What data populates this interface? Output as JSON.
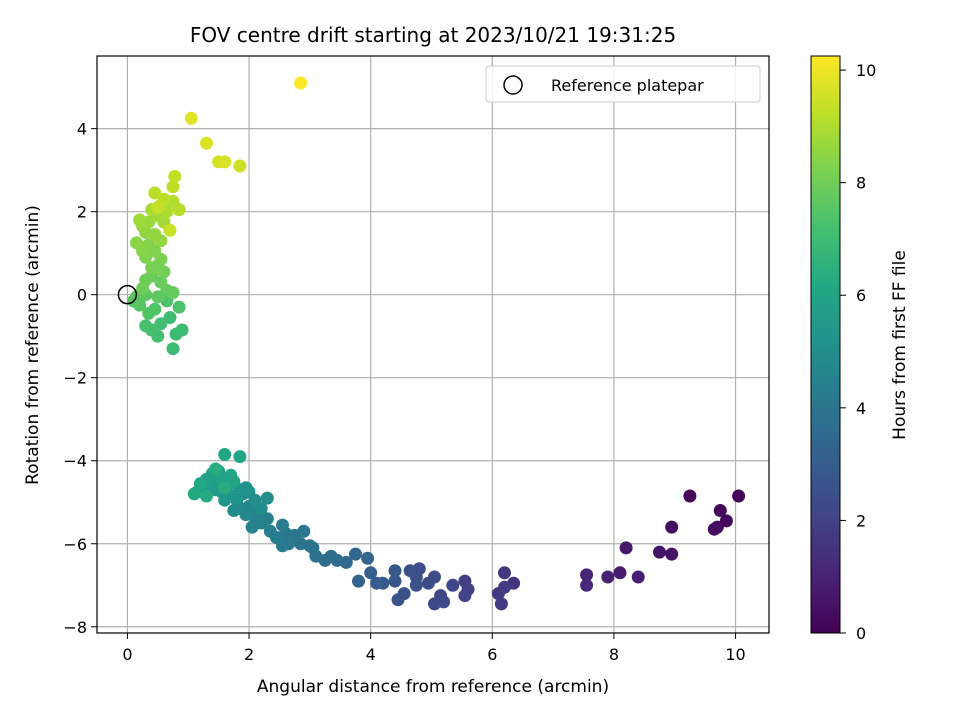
{
  "chart_data": {
    "type": "scatter",
    "title": "FOV centre drift starting at 2023/10/21 19:31:25",
    "xlabel": "Angular distance from reference (arcmin)",
    "ylabel": "Rotation from reference (arcmin)",
    "xlim": [
      -0.5,
      10.55
    ],
    "ylim": [
      -8.15,
      5.75
    ],
    "xticks": [
      0,
      2,
      4,
      6,
      8,
      10
    ],
    "yticks": [
      -8,
      -6,
      -4,
      -2,
      0,
      2,
      4
    ],
    "grid": true,
    "legend": {
      "position": "top-right",
      "entries": [
        "Reference platepar"
      ]
    },
    "reference_point": {
      "x": 0,
      "y": 0,
      "label": "Reference platepar"
    },
    "colorbar": {
      "label": "Hours from first FF file",
      "colormap": "viridis",
      "range": [
        0,
        10.25
      ],
      "ticks": [
        0,
        2,
        4,
        6,
        8,
        10
      ]
    },
    "points": [
      [
        10.05,
        -4.85,
        0.05
      ],
      [
        9.25,
        -4.85,
        0.15
      ],
      [
        9.75,
        -5.2,
        0.2
      ],
      [
        9.85,
        -5.45,
        0.25
      ],
      [
        9.7,
        -5.6,
        0.3
      ],
      [
        9.65,
        -5.65,
        0.35
      ],
      [
        8.95,
        -5.6,
        0.45
      ],
      [
        8.95,
        -6.25,
        0.55
      ],
      [
        8.75,
        -6.2,
        0.6
      ],
      [
        8.2,
        -6.1,
        0.7
      ],
      [
        8.1,
        -6.7,
        0.8
      ],
      [
        8.4,
        -6.8,
        0.9
      ],
      [
        7.9,
        -6.8,
        1.0
      ],
      [
        7.55,
        -6.75,
        1.1
      ],
      [
        7.55,
        -7.0,
        1.2
      ],
      [
        6.35,
        -6.95,
        1.5
      ],
      [
        6.2,
        -6.7,
        1.6
      ],
      [
        6.1,
        -7.2,
        1.7
      ],
      [
        6.15,
        -7.45,
        1.75
      ],
      [
        6.2,
        -7.05,
        1.8
      ],
      [
        5.55,
        -6.9,
        1.9
      ],
      [
        5.6,
        -7.1,
        2.0
      ],
      [
        5.55,
        -7.25,
        2.05
      ],
      [
        5.35,
        -7.0,
        2.1
      ],
      [
        5.15,
        -7.25,
        2.15
      ],
      [
        5.2,
        -7.4,
        2.2
      ],
      [
        5.05,
        -7.45,
        2.25
      ],
      [
        5.05,
        -6.8,
        2.3
      ],
      [
        4.95,
        -6.95,
        2.35
      ],
      [
        4.8,
        -6.6,
        2.4
      ],
      [
        4.75,
        -6.8,
        2.45
      ],
      [
        4.65,
        -6.65,
        2.5
      ],
      [
        4.75,
        -7.0,
        2.55
      ],
      [
        4.55,
        -7.2,
        2.6
      ],
      [
        4.45,
        -7.35,
        2.65
      ],
      [
        4.4,
        -6.9,
        2.7
      ],
      [
        4.4,
        -6.65,
        2.8
      ],
      [
        4.2,
        -6.95,
        2.9
      ],
      [
        4.1,
        -6.95,
        3.0
      ],
      [
        4.0,
        -6.7,
        3.1
      ],
      [
        3.8,
        -6.9,
        3.2
      ],
      [
        3.95,
        -6.35,
        3.3
      ],
      [
        3.75,
        -6.25,
        3.4
      ],
      [
        3.6,
        -6.45,
        3.5
      ],
      [
        3.45,
        -6.4,
        3.6
      ],
      [
        3.35,
        -6.3,
        3.7
      ],
      [
        3.25,
        -6.4,
        3.75
      ],
      [
        3.05,
        -6.1,
        3.8
      ],
      [
        3.1,
        -6.3,
        3.85
      ],
      [
        3.0,
        -6.05,
        3.9
      ],
      [
        2.85,
        -6.0,
        3.95
      ],
      [
        2.75,
        -5.8,
        4.0
      ],
      [
        2.9,
        -5.7,
        4.05
      ],
      [
        2.6,
        -5.75,
        4.1
      ],
      [
        2.65,
        -6.0,
        4.15
      ],
      [
        2.55,
        -6.05,
        4.2
      ],
      [
        2.45,
        -5.85,
        4.25
      ],
      [
        2.55,
        -5.55,
        4.3
      ],
      [
        2.35,
        -5.7,
        4.35
      ],
      [
        2.3,
        -5.4,
        4.4
      ],
      [
        2.2,
        -5.5,
        4.45
      ],
      [
        2.1,
        -5.35,
        4.5
      ],
      [
        2.05,
        -5.6,
        4.55
      ],
      [
        2.15,
        -5.2,
        4.6
      ],
      [
        2.0,
        -5.1,
        4.65
      ],
      [
        1.95,
        -5.3,
        4.7
      ],
      [
        1.85,
        -5.15,
        4.75
      ],
      [
        1.8,
        -4.95,
        4.8
      ],
      [
        1.75,
        -5.2,
        4.85
      ],
      [
        1.9,
        -4.8,
        4.9
      ],
      [
        2.3,
        -4.9,
        4.95
      ],
      [
        2.2,
        -5.15,
        5.0
      ],
      [
        2.1,
        -4.95,
        5.05
      ],
      [
        2.0,
        -4.75,
        5.1
      ],
      [
        1.95,
        -4.65,
        5.15
      ],
      [
        1.85,
        -4.7,
        5.2
      ],
      [
        1.8,
        -4.9,
        5.25
      ],
      [
        1.7,
        -4.85,
        5.3
      ],
      [
        1.6,
        -4.95,
        5.35
      ],
      [
        1.65,
        -4.6,
        5.4
      ],
      [
        1.55,
        -4.75,
        5.45
      ],
      [
        1.5,
        -4.5,
        5.5
      ],
      [
        1.45,
        -4.7,
        5.55
      ],
      [
        1.35,
        -4.6,
        5.6
      ],
      [
        1.25,
        -4.75,
        5.65
      ],
      [
        1.15,
        -4.75,
        5.7
      ],
      [
        1.3,
        -4.45,
        5.75
      ],
      [
        1.4,
        -4.3,
        5.8
      ],
      [
        1.5,
        -4.25,
        5.85
      ],
      [
        1.55,
        -4.45,
        5.9
      ],
      [
        1.7,
        -4.35,
        5.95
      ],
      [
        1.75,
        -4.5,
        6.0
      ],
      [
        1.85,
        -3.9,
        6.05
      ],
      [
        1.6,
        -3.85,
        6.1
      ],
      [
        1.2,
        -4.55,
        6.15
      ],
      [
        1.1,
        -4.8,
        6.2
      ],
      [
        1.3,
        -4.85,
        6.25
      ],
      [
        1.45,
        -4.2,
        6.3
      ],
      [
        1.6,
        -4.65,
        6.35
      ],
      [
        0.8,
        -0.95,
        6.9
      ],
      [
        0.75,
        -1.3,
        6.95
      ],
      [
        0.9,
        -0.85,
        7.0
      ],
      [
        0.7,
        -0.55,
        7.05
      ],
      [
        0.55,
        -0.7,
        7.1
      ],
      [
        0.5,
        -1.0,
        7.15
      ],
      [
        0.4,
        -0.85,
        7.2
      ],
      [
        0.3,
        -0.75,
        7.25
      ],
      [
        0.85,
        -0.3,
        7.3
      ],
      [
        0.65,
        -0.15,
        7.35
      ],
      [
        0.45,
        -0.35,
        7.4
      ],
      [
        0.35,
        -0.45,
        7.45
      ],
      [
        0.2,
        -0.25,
        7.5
      ],
      [
        0.1,
        -0.15,
        7.55
      ],
      [
        0.15,
        -0.05,
        7.6
      ],
      [
        0.3,
        0.0,
        7.65
      ],
      [
        0.5,
        -0.05,
        7.7
      ],
      [
        0.65,
        0.1,
        7.75
      ],
      [
        0.75,
        0.05,
        7.8
      ],
      [
        0.55,
        0.3,
        7.85
      ],
      [
        0.4,
        0.45,
        7.9
      ],
      [
        0.3,
        0.35,
        7.95
      ],
      [
        0.25,
        0.15,
        8.0
      ],
      [
        0.6,
        0.55,
        8.05
      ],
      [
        0.5,
        0.7,
        8.1
      ],
      [
        0.4,
        0.65,
        8.15
      ],
      [
        0.55,
        0.85,
        8.2
      ],
      [
        0.3,
        0.9,
        8.25
      ],
      [
        0.45,
        1.05,
        8.3
      ],
      [
        0.35,
        1.2,
        8.35
      ],
      [
        0.25,
        1.05,
        8.4
      ],
      [
        0.15,
        1.25,
        8.45
      ],
      [
        0.3,
        1.5,
        8.5
      ],
      [
        0.45,
        1.45,
        8.55
      ],
      [
        0.55,
        1.3,
        8.6
      ],
      [
        0.25,
        1.65,
        8.65
      ],
      [
        0.35,
        1.75,
        8.7
      ],
      [
        0.2,
        1.8,
        8.75
      ],
      [
        0.5,
        1.9,
        8.8
      ],
      [
        0.6,
        1.75,
        8.85
      ],
      [
        0.4,
        2.05,
        8.9
      ],
      [
        0.55,
        2.15,
        8.95
      ],
      [
        0.65,
        2.0,
        9.0
      ],
      [
        0.75,
        2.25,
        9.05
      ],
      [
        0.85,
        2.05,
        9.1
      ],
      [
        0.45,
        2.45,
        9.15
      ],
      [
        0.6,
        2.3,
        9.2
      ],
      [
        0.75,
        2.6,
        9.25
      ],
      [
        0.78,
        2.85,
        9.3
      ],
      [
        0.5,
        2.1,
        9.35
      ],
      [
        0.7,
        1.55,
        9.4
      ],
      [
        1.85,
        3.1,
        9.5
      ],
      [
        1.5,
        3.2,
        9.6
      ],
      [
        1.6,
        3.2,
        9.65
      ],
      [
        1.3,
        3.65,
        9.7
      ],
      [
        1.05,
        4.25,
        9.8
      ],
      [
        2.85,
        5.1,
        10.2
      ]
    ]
  }
}
